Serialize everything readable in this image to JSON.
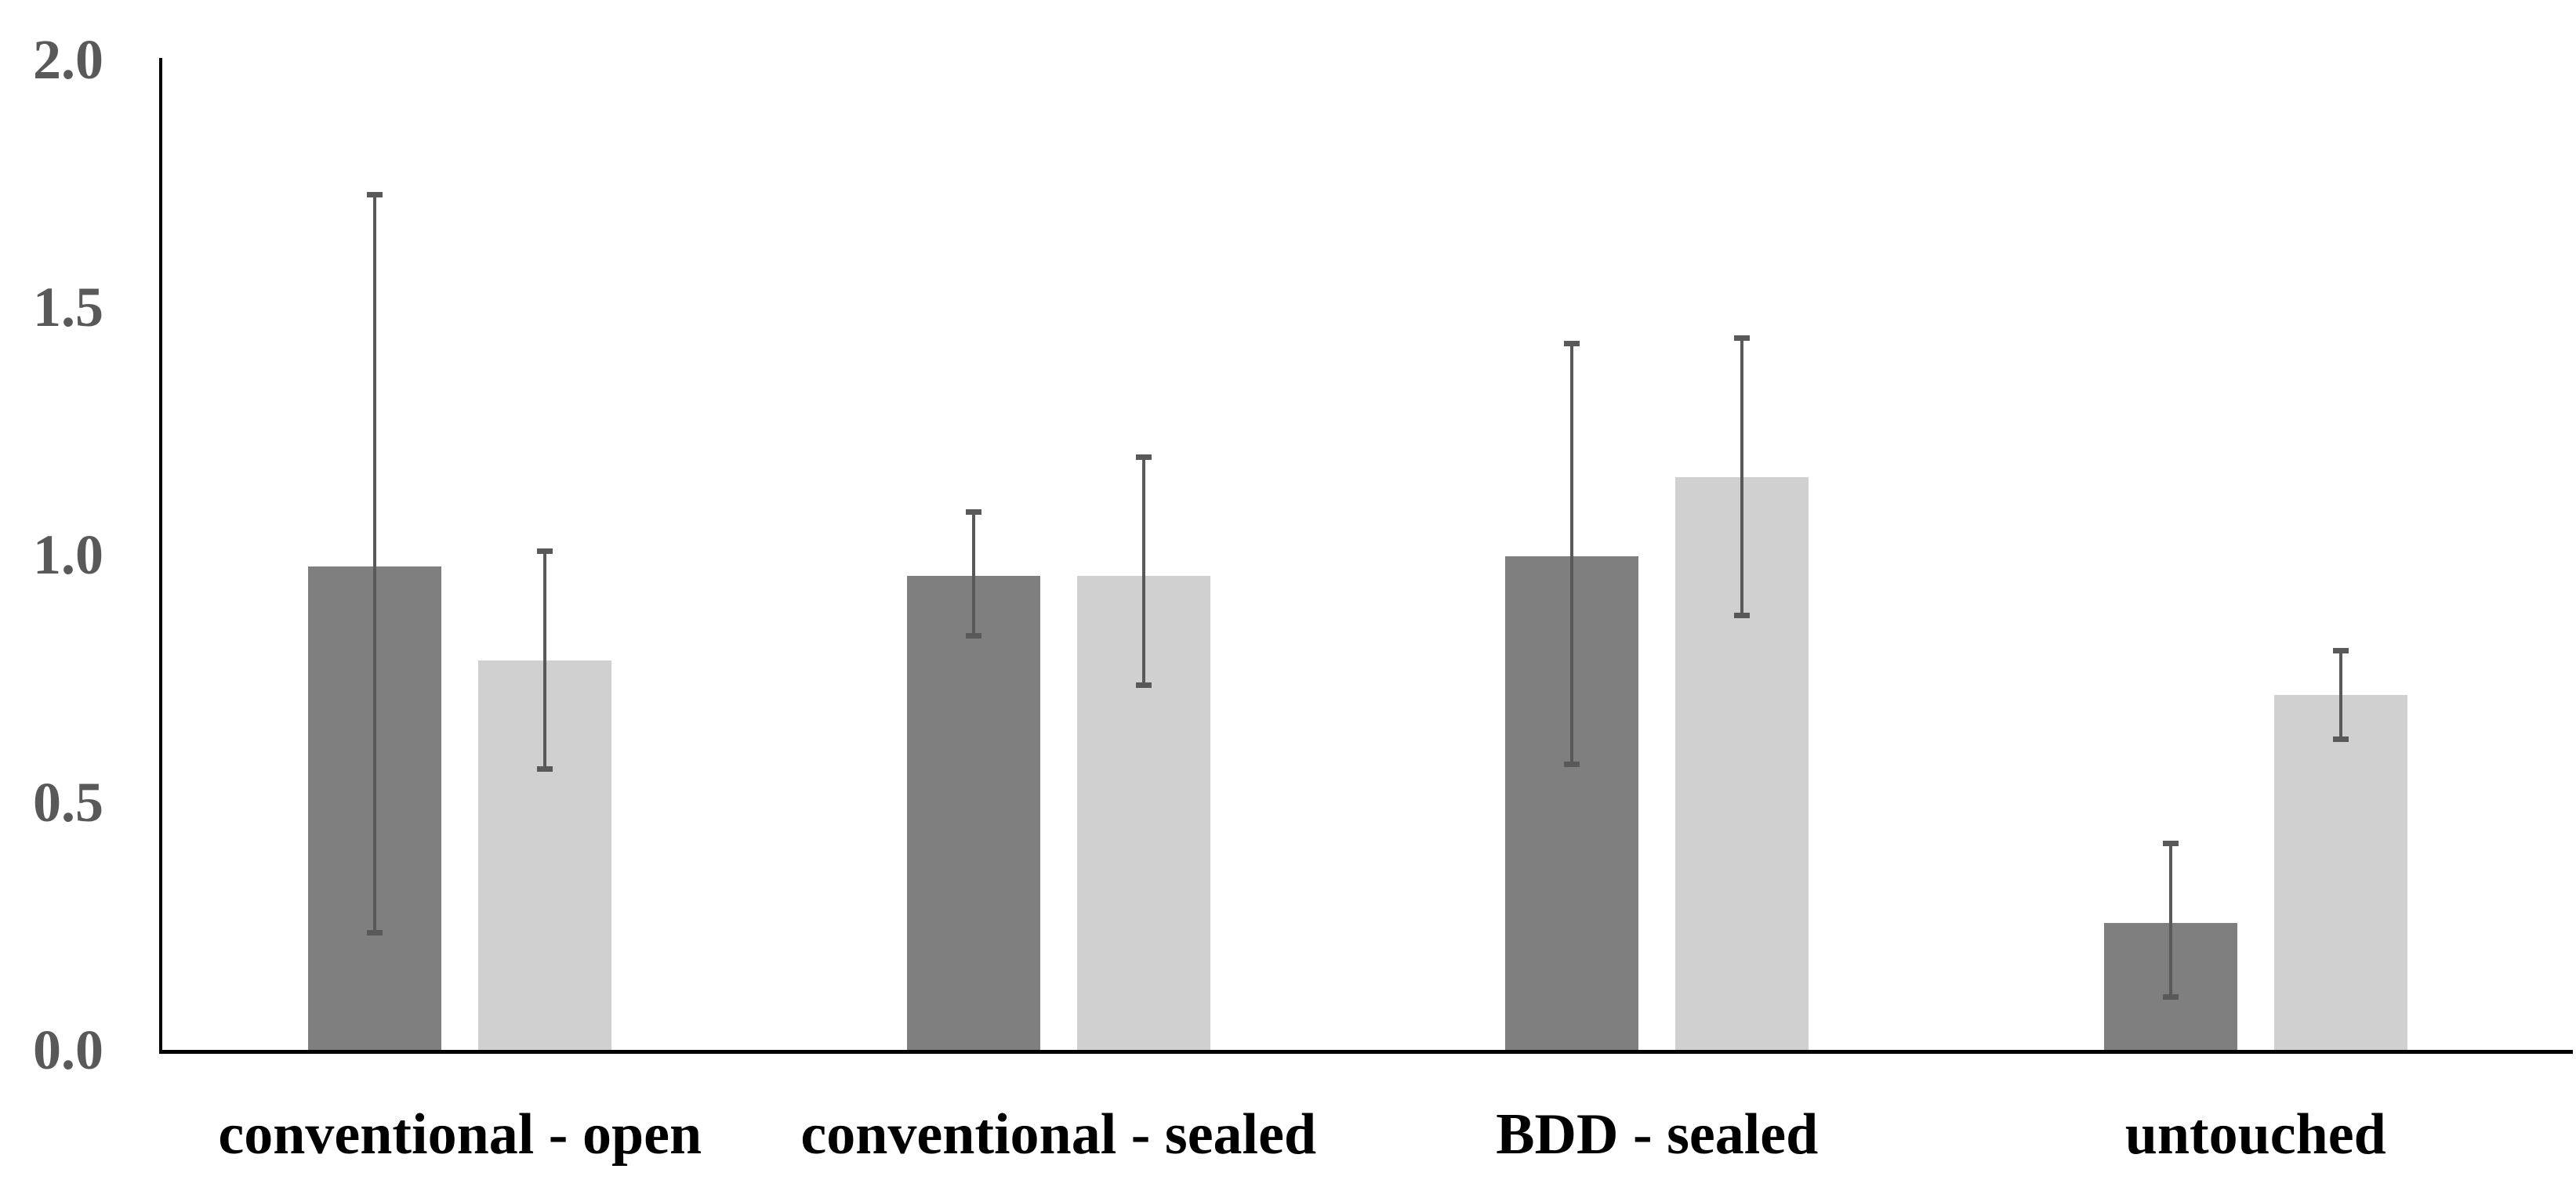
{
  "chart_data": {
    "type": "bar",
    "title": "",
    "xlabel": "",
    "ylabel": "",
    "categories": [
      "conventional - open",
      "conventional - sealed",
      "BDD - sealed",
      "untouched"
    ],
    "series": [
      {
        "name": "dark-gray-series",
        "color": "#7f7f7f",
        "values": [
          0.98,
          0.96,
          1.0,
          0.26
        ],
        "error_low": [
          0.24,
          0.84,
          0.58,
          0.11
        ],
        "error_high": [
          1.73,
          1.09,
          1.43,
          0.42
        ]
      },
      {
        "name": "light-gray-series",
        "color": "#d0d0d0",
        "values": [
          0.79,
          0.96,
          1.16,
          0.72
        ],
        "error_low": [
          0.57,
          0.74,
          0.88,
          0.63
        ],
        "error_high": [
          1.01,
          1.2,
          1.44,
          0.81
        ]
      }
    ],
    "ylim": [
      0.0,
      2.0
    ],
    "yticks": [
      "0.0",
      "0.5",
      "1.0",
      "1.5",
      "2.0"
    ],
    "ytick_values": [
      0.0,
      0.5,
      1.0,
      1.5,
      2.0
    ],
    "grid": false,
    "legend": false,
    "error_bars": true,
    "colors": {
      "axis": "#000000",
      "error_bar": "#595959",
      "tick_label": "#595959",
      "category_label": "#000000",
      "background": "#ffffff"
    }
  }
}
